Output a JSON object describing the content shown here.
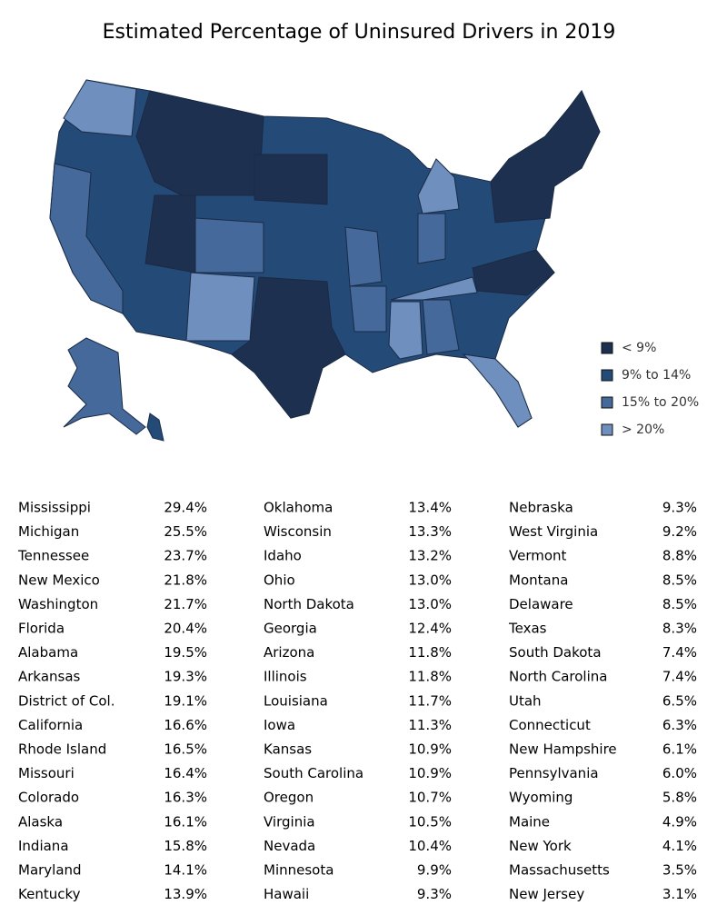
{
  "title": "Estimated Percentage of Uninsured Drivers in 2019",
  "legend": [
    {
      "label": "< 9%",
      "color": "#1e3050"
    },
    {
      "label": "9% to 14%",
      "color": "#244a78"
    },
    {
      "label": "15% to 20%",
      "color": "#44699a"
    },
    {
      "label": "> 20%",
      "color": "#6f8fbf"
    }
  ],
  "table": {
    "columns": [
      [
        [
          "Mississippi",
          "29.4%"
        ],
        [
          "Michigan",
          "25.5%"
        ],
        [
          "Tennessee",
          "23.7%"
        ],
        [
          "New Mexico",
          "21.8%"
        ],
        [
          "Washington",
          "21.7%"
        ],
        [
          "Florida",
          "20.4%"
        ],
        [
          "Alabama",
          "19.5%"
        ],
        [
          "Arkansas",
          "19.3%"
        ],
        [
          "District of Col.",
          "19.1%"
        ],
        [
          "California",
          "16.6%"
        ],
        [
          "Rhode Island",
          "16.5%"
        ],
        [
          "Missouri",
          "16.4%"
        ],
        [
          "Colorado",
          "16.3%"
        ],
        [
          "Alaska",
          "16.1%"
        ],
        [
          "Indiana",
          "15.8%"
        ],
        [
          "Maryland",
          "14.1%"
        ],
        [
          "Kentucky",
          "13.9%"
        ]
      ],
      [
        [
          "Oklahoma",
          "13.4%"
        ],
        [
          "Wisconsin",
          "13.3%"
        ],
        [
          "Idaho",
          "13.2%"
        ],
        [
          "Ohio",
          "13.0%"
        ],
        [
          "North Dakota",
          "13.0%"
        ],
        [
          "Georgia",
          "12.4%"
        ],
        [
          "Arizona",
          "11.8%"
        ],
        [
          "Illinois",
          "11.8%"
        ],
        [
          "Louisiana",
          "11.7%"
        ],
        [
          "Iowa",
          "11.3%"
        ],
        [
          "Kansas",
          "10.9%"
        ],
        [
          "South Carolina",
          "10.9%"
        ],
        [
          "Oregon",
          "10.7%"
        ],
        [
          "Virginia",
          "10.5%"
        ],
        [
          "Nevada",
          "10.4%"
        ],
        [
          "Minnesota",
          "9.9%"
        ],
        [
          "Hawaii",
          "9.3%"
        ]
      ],
      [
        [
          "Nebraska",
          "9.3%"
        ],
        [
          "West Virginia",
          "9.2%"
        ],
        [
          "Vermont",
          "8.8%"
        ],
        [
          "Montana",
          "8.5%"
        ],
        [
          "Delaware",
          "8.5%"
        ],
        [
          "Texas",
          "8.3%"
        ],
        [
          "South Dakota",
          "7.4%"
        ],
        [
          "North Carolina",
          "7.4%"
        ],
        [
          "Utah",
          "6.5%"
        ],
        [
          "Connecticut",
          "6.3%"
        ],
        [
          "New Hampshire",
          "6.1%"
        ],
        [
          "Pennsylvania",
          "6.0%"
        ],
        [
          "Wyoming",
          "5.8%"
        ],
        [
          "Maine",
          "4.9%"
        ],
        [
          "New York",
          "4.1%"
        ],
        [
          "Massachusetts",
          "3.5%"
        ],
        [
          "New Jersey",
          "3.1%"
        ]
      ]
    ]
  }
}
